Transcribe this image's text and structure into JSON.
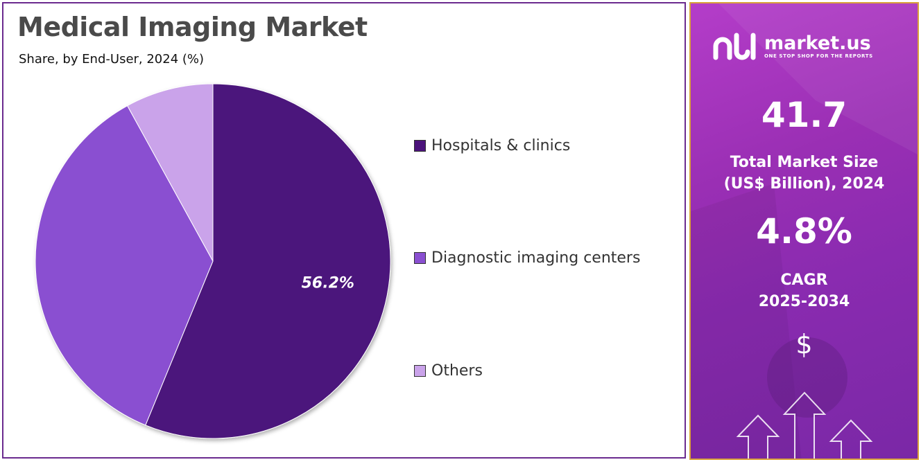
{
  "header": {
    "title": "Medical Imaging Market",
    "subtitle": "Share, by End-User, 2024 (%)"
  },
  "chart_data": {
    "type": "pie",
    "title": "Medical Imaging Market",
    "subtitle": "Share, by End-User, 2024 (%)",
    "categories": [
      "Hospitals & clinics",
      "Diagnostic imaging centers",
      "Others"
    ],
    "values": [
      56.2,
      35.8,
      8.0
    ],
    "data_labels": [
      "56.2%",
      "",
      ""
    ],
    "colors": [
      "#4b137b",
      "#8a4fd1",
      "#caa3ea"
    ],
    "legend_position": "right",
    "start_angle": "12 o'clock",
    "direction": "clockwise"
  },
  "sidebar": {
    "brand_name": "market.us",
    "brand_tagline": "ONE STOP SHOP FOR THE REPORTS",
    "market_size_value": "41.7",
    "market_size_label_line1": "Total Market Size",
    "market_size_label_line2": "(US$ Billion), 2024",
    "cagr_value": "4.8%",
    "cagr_label_line1": "CAGR",
    "cagr_label_line2": "2025-2034",
    "dollar_symbol": "$",
    "colors": {
      "background": "#9a2fb4",
      "border": "#d9a23a",
      "text": "#ffffff"
    }
  },
  "theme": {
    "title_color": "#4a4a4a",
    "panel_border": "#6a2a8e"
  },
  "icons": [
    "market-us-logo-icon",
    "dollar-icon",
    "up-arrow-icon"
  ]
}
